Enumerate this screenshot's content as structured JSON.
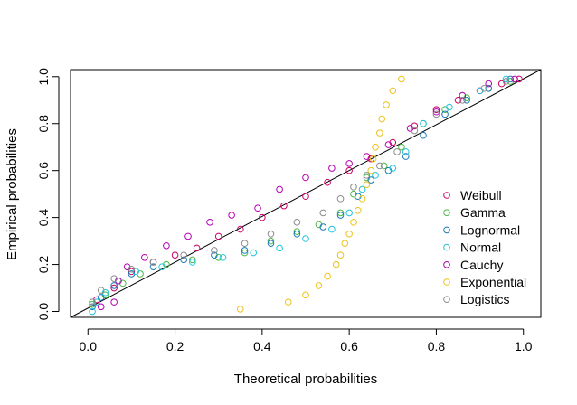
{
  "chart_data": {
    "type": "scatter",
    "xlabel": "Theoretical probabilities",
    "ylabel": "Empirical probabilities",
    "xlim": [
      -0.04,
      1.04
    ],
    "ylim": [
      -0.025,
      1.03
    ],
    "xticks": [
      "0.0",
      "0.2",
      "0.4",
      "0.6",
      "0.8",
      "1.0"
    ],
    "yticks": [
      "0.0",
      "0.2",
      "0.4",
      "0.6",
      "0.8",
      "1.0"
    ],
    "grid": false,
    "legend_position": "bottom-right",
    "reference_line": [
      [
        0,
        0
      ],
      [
        1,
        1
      ]
    ],
    "marker": "open-circle",
    "series": [
      {
        "name": "Weibull",
        "color": "#CC0066",
        "points": [
          [
            0.02,
            0.05
          ],
          [
            0.06,
            0.1
          ],
          [
            0.1,
            0.17
          ],
          [
            0.15,
            0.21
          ],
          [
            0.2,
            0.24
          ],
          [
            0.25,
            0.27
          ],
          [
            0.3,
            0.32
          ],
          [
            0.35,
            0.35
          ],
          [
            0.4,
            0.4
          ],
          [
            0.45,
            0.45
          ],
          [
            0.5,
            0.49
          ],
          [
            0.55,
            0.55
          ],
          [
            0.6,
            0.6
          ],
          [
            0.65,
            0.65
          ],
          [
            0.7,
            0.72
          ],
          [
            0.75,
            0.79
          ],
          [
            0.8,
            0.86
          ],
          [
            0.85,
            0.9
          ],
          [
            0.9,
            0.94
          ],
          [
            0.95,
            0.97
          ],
          [
            0.99,
            0.99
          ]
        ]
      },
      {
        "name": "Gamma",
        "color": "#4CB848",
        "points": [
          [
            0.01,
            0.03
          ],
          [
            0.04,
            0.07
          ],
          [
            0.08,
            0.12
          ],
          [
            0.12,
            0.16
          ],
          [
            0.18,
            0.2
          ],
          [
            0.24,
            0.22
          ],
          [
            0.3,
            0.23
          ],
          [
            0.36,
            0.25
          ],
          [
            0.42,
            0.3
          ],
          [
            0.48,
            0.34
          ],
          [
            0.53,
            0.37
          ],
          [
            0.58,
            0.42
          ],
          [
            0.61,
            0.5
          ],
          [
            0.64,
            0.57
          ],
          [
            0.68,
            0.62
          ],
          [
            0.72,
            0.7
          ],
          [
            0.77,
            0.8
          ],
          [
            0.82,
            0.86
          ],
          [
            0.87,
            0.91
          ],
          [
            0.92,
            0.95
          ],
          [
            0.97,
            0.98
          ]
        ]
      },
      {
        "name": "Lognormal",
        "color": "#1A7BB8",
        "points": [
          [
            0.01,
            0.02
          ],
          [
            0.03,
            0.06
          ],
          [
            0.06,
            0.11
          ],
          [
            0.1,
            0.16
          ],
          [
            0.15,
            0.19
          ],
          [
            0.22,
            0.22
          ],
          [
            0.29,
            0.24
          ],
          [
            0.36,
            0.26
          ],
          [
            0.42,
            0.29
          ],
          [
            0.48,
            0.33
          ],
          [
            0.54,
            0.36
          ],
          [
            0.58,
            0.41
          ],
          [
            0.62,
            0.49
          ],
          [
            0.65,
            0.56
          ],
          [
            0.69,
            0.6
          ],
          [
            0.73,
            0.66
          ],
          [
            0.77,
            0.75
          ],
          [
            0.82,
            0.84
          ],
          [
            0.87,
            0.9
          ],
          [
            0.92,
            0.95
          ],
          [
            0.97,
            0.99
          ]
        ]
      },
      {
        "name": "Normal",
        "color": "#22C4DC",
        "points": [
          [
            0.01,
            0.0
          ],
          [
            0.02,
            0.04
          ],
          [
            0.04,
            0.08
          ],
          [
            0.07,
            0.13
          ],
          [
            0.11,
            0.17
          ],
          [
            0.17,
            0.19
          ],
          [
            0.24,
            0.21
          ],
          [
            0.31,
            0.23
          ],
          [
            0.38,
            0.25
          ],
          [
            0.44,
            0.27
          ],
          [
            0.5,
            0.31
          ],
          [
            0.56,
            0.35
          ],
          [
            0.6,
            0.42
          ],
          [
            0.63,
            0.52
          ],
          [
            0.66,
            0.58
          ],
          [
            0.7,
            0.61
          ],
          [
            0.73,
            0.68
          ],
          [
            0.77,
            0.8
          ],
          [
            0.83,
            0.87
          ],
          [
            0.9,
            0.94
          ],
          [
            0.96,
            0.99
          ]
        ]
      },
      {
        "name": "Cauchy",
        "color": "#B400B4",
        "points": [
          [
            0.03,
            0.02
          ],
          [
            0.06,
            0.04
          ],
          [
            0.07,
            0.13
          ],
          [
            0.09,
            0.19
          ],
          [
            0.13,
            0.23
          ],
          [
            0.18,
            0.28
          ],
          [
            0.23,
            0.32
          ],
          [
            0.28,
            0.38
          ],
          [
            0.33,
            0.41
          ],
          [
            0.39,
            0.44
          ],
          [
            0.44,
            0.52
          ],
          [
            0.5,
            0.57
          ],
          [
            0.56,
            0.61
          ],
          [
            0.6,
            0.63
          ],
          [
            0.64,
            0.66
          ],
          [
            0.69,
            0.71
          ],
          [
            0.74,
            0.78
          ],
          [
            0.8,
            0.85
          ],
          [
            0.86,
            0.92
          ],
          [
            0.92,
            0.97
          ],
          [
            0.98,
            0.99
          ]
        ]
      },
      {
        "name": "Exponential",
        "color": "#EEC21A",
        "points": [
          [
            0.35,
            0.01
          ],
          [
            0.46,
            0.04
          ],
          [
            0.5,
            0.07
          ],
          [
            0.53,
            0.11
          ],
          [
            0.55,
            0.15
          ],
          [
            0.57,
            0.2
          ],
          [
            0.58,
            0.24
          ],
          [
            0.59,
            0.29
          ],
          [
            0.6,
            0.33
          ],
          [
            0.61,
            0.38
          ],
          [
            0.62,
            0.43
          ],
          [
            0.63,
            0.48
          ],
          [
            0.64,
            0.54
          ],
          [
            0.65,
            0.6
          ],
          [
            0.655,
            0.65
          ],
          [
            0.66,
            0.7
          ],
          [
            0.67,
            0.76
          ],
          [
            0.675,
            0.82
          ],
          [
            0.685,
            0.88
          ],
          [
            0.7,
            0.94
          ],
          [
            0.72,
            0.99
          ]
        ]
      },
      {
        "name": "Logistics",
        "color": "#8C8C8C",
        "points": [
          [
            0.01,
            0.04
          ],
          [
            0.03,
            0.09
          ],
          [
            0.06,
            0.14
          ],
          [
            0.1,
            0.18
          ],
          [
            0.15,
            0.21
          ],
          [
            0.22,
            0.24
          ],
          [
            0.29,
            0.26
          ],
          [
            0.36,
            0.29
          ],
          [
            0.42,
            0.33
          ],
          [
            0.48,
            0.38
          ],
          [
            0.54,
            0.42
          ],
          [
            0.58,
            0.48
          ],
          [
            0.61,
            0.53
          ],
          [
            0.64,
            0.58
          ],
          [
            0.67,
            0.62
          ],
          [
            0.71,
            0.68
          ],
          [
            0.75,
            0.77
          ],
          [
            0.8,
            0.84
          ],
          [
            0.86,
            0.9
          ],
          [
            0.91,
            0.95
          ],
          [
            0.96,
            0.98
          ]
        ]
      }
    ]
  }
}
